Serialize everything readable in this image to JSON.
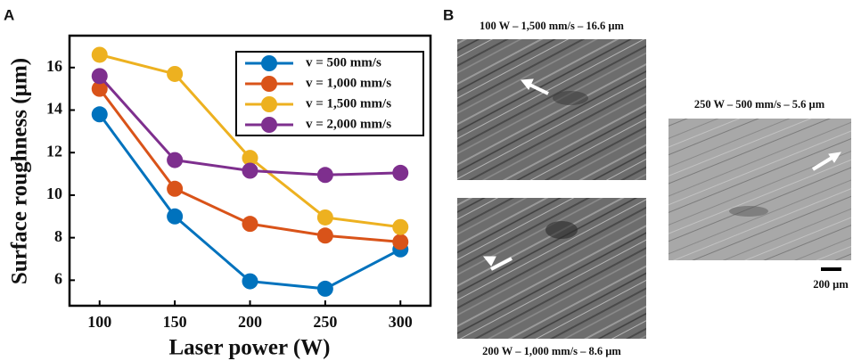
{
  "chart_data": {
    "type": "line",
    "x_label": "Laser power (W)",
    "y_label": "Surface roughness (µm)",
    "x": [
      100,
      150,
      200,
      250,
      300
    ],
    "series": [
      {
        "name": "v = 500 mm/s",
        "color": "#0072bd",
        "values": [
          13.8,
          9.0,
          5.95,
          5.6,
          7.45
        ]
      },
      {
        "name": "v = 1,000 mm/s",
        "color": "#d95319",
        "values": [
          15.0,
          10.3,
          8.65,
          8.1,
          7.8
        ]
      },
      {
        "name": "v = 1,500 mm/s",
        "color": "#edb120",
        "values": [
          16.6,
          15.7,
          11.75,
          8.95,
          8.5
        ]
      },
      {
        "name": "v = 2,000 mm/s",
        "color": "#7e2f8e",
        "values": [
          15.6,
          11.65,
          11.15,
          10.95,
          11.05
        ]
      }
    ],
    "xlim": [
      80,
      320
    ],
    "ylim": [
      4.8,
      17.5
    ],
    "xticks": [
      100,
      150,
      200,
      250,
      300
    ],
    "yticks": [
      6,
      8,
      10,
      12,
      14,
      16
    ],
    "grid": false,
    "legend": "upper right"
  },
  "figure": {
    "panel_a": "A",
    "panel_b": "B",
    "images": [
      {
        "caption": "100 W – 1,500 mm/s – 16.6 µm"
      },
      {
        "caption": "200 W – 1,000 mm/s – 8.6 µm"
      },
      {
        "caption": "250 W – 500 mm/s – 5.6 µm"
      }
    ],
    "scale_bar": "200 µm"
  }
}
